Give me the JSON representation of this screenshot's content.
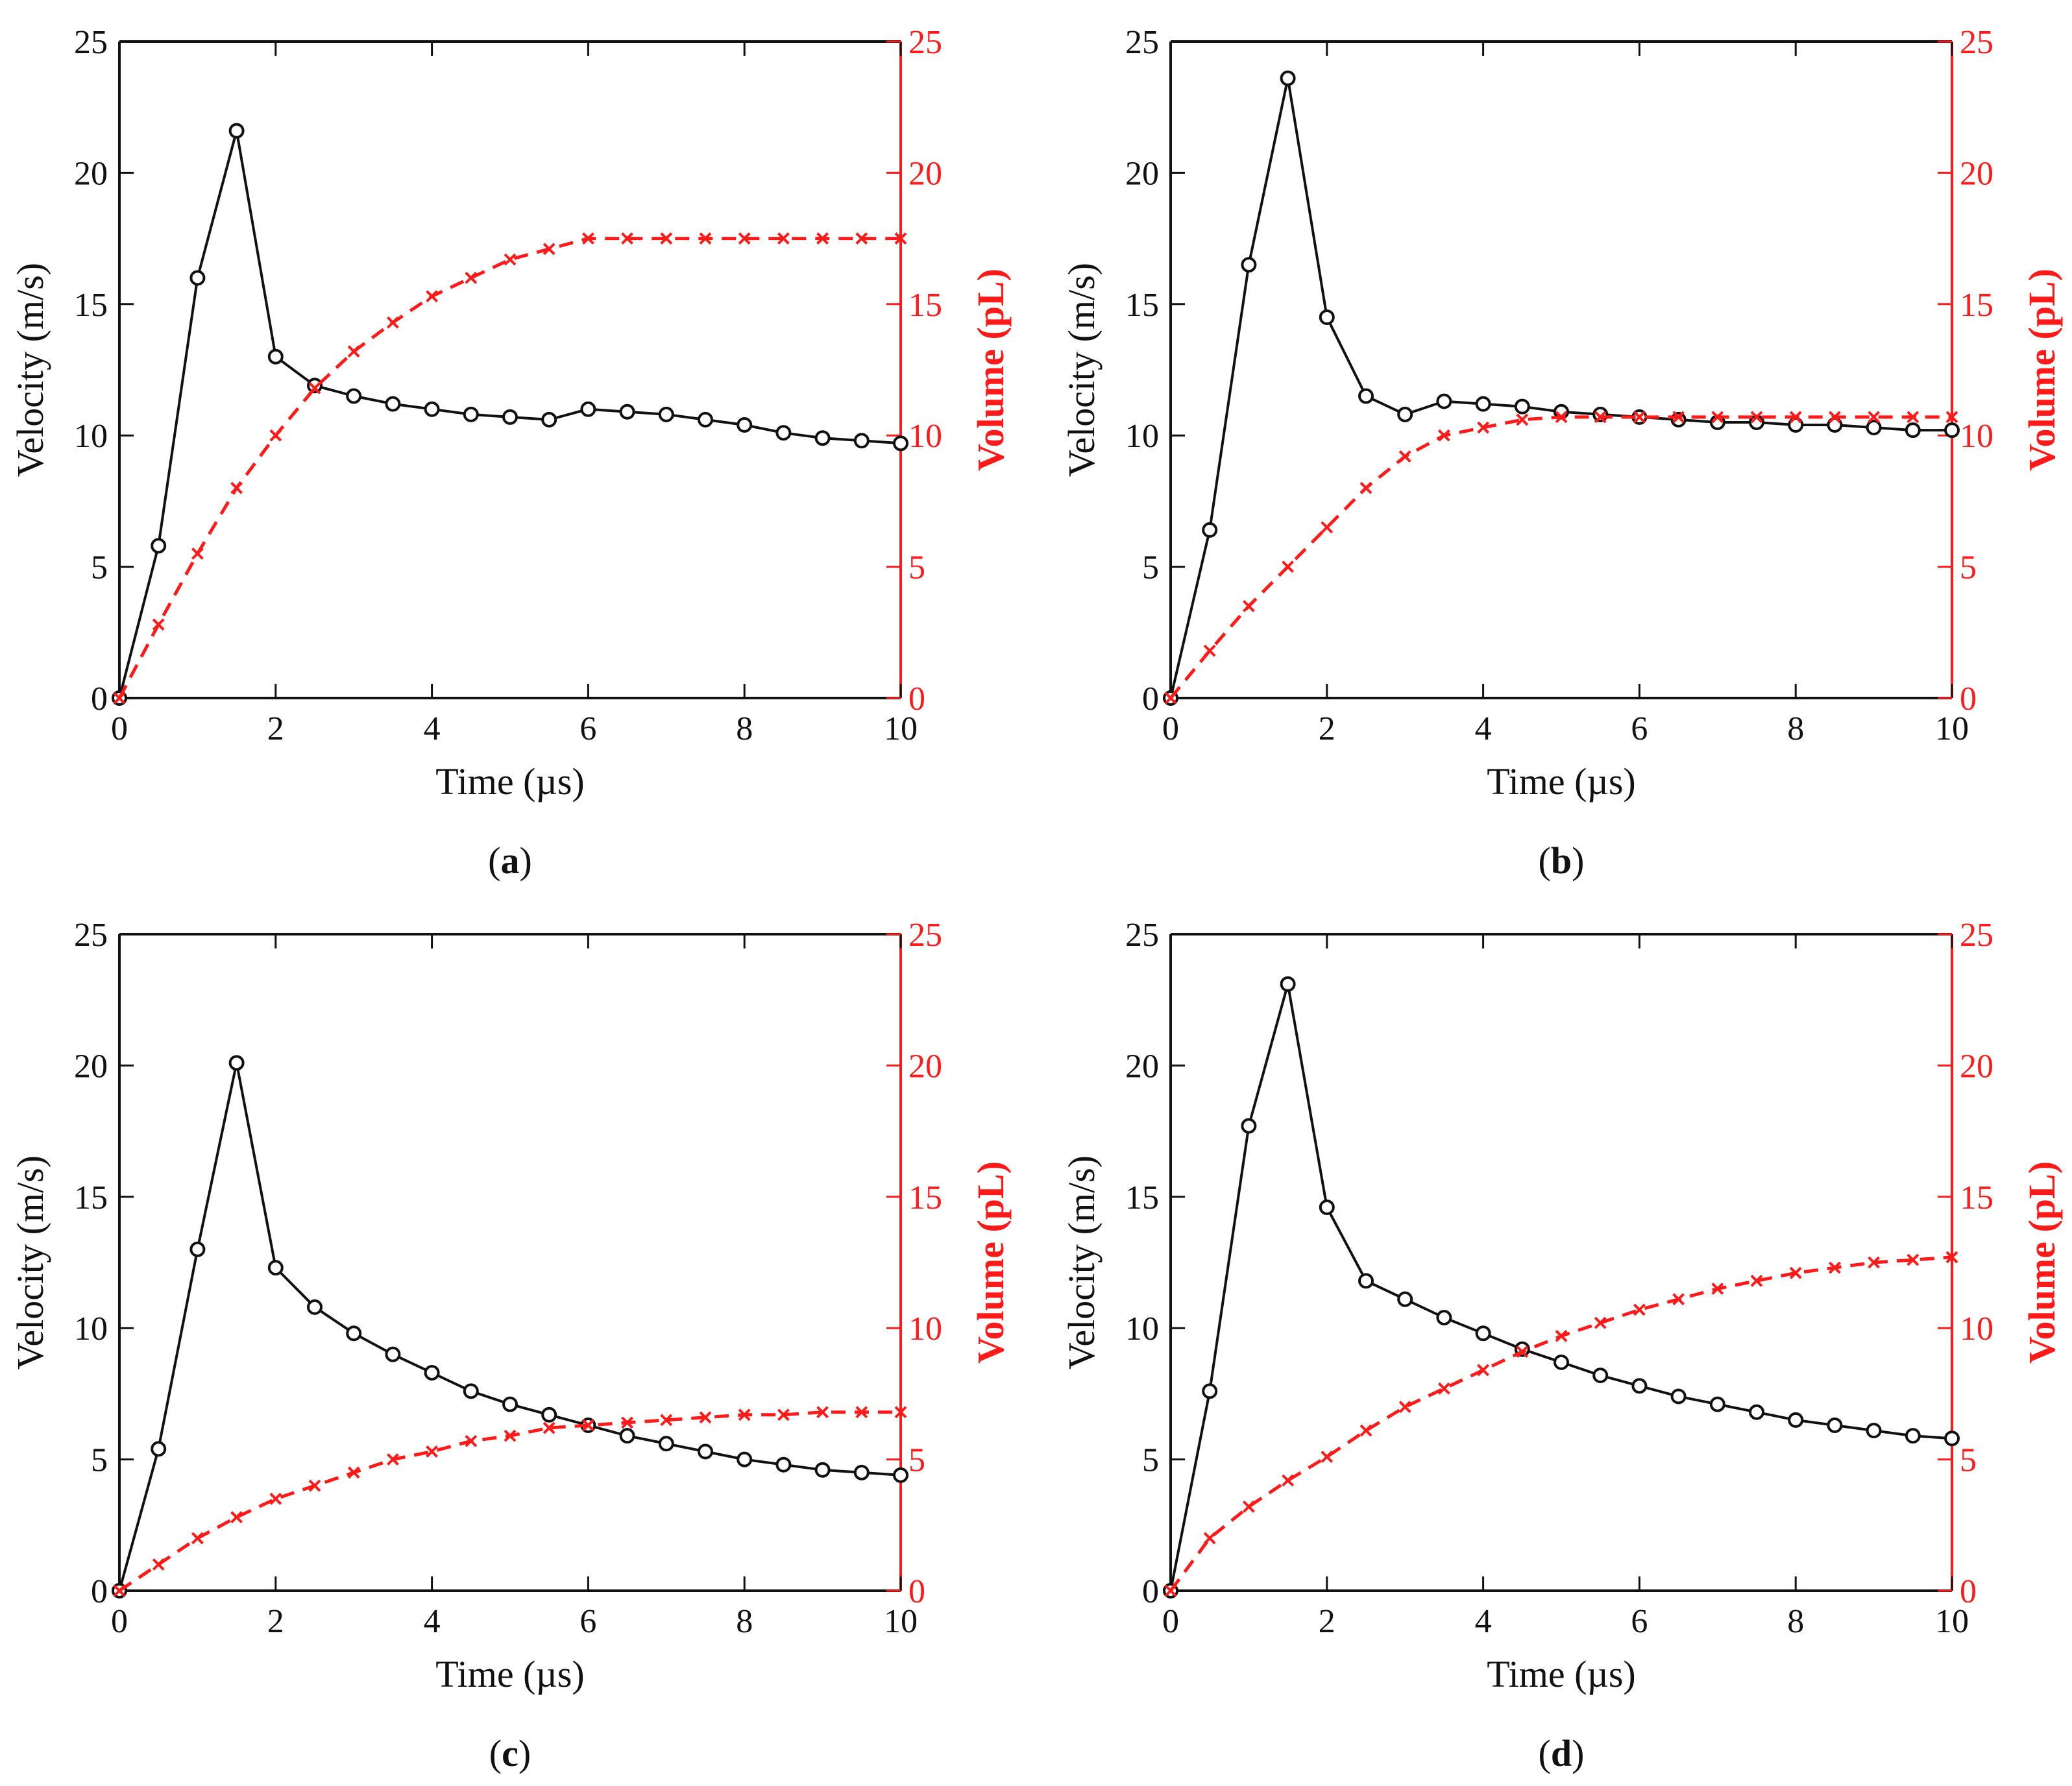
{
  "colors": {
    "velocity": "#111111",
    "volume": "#ff1a1a",
    "axis": "#111111"
  },
  "chart_data": [
    {
      "type": "line",
      "panel_label": "a",
      "xlabel": "Time (µs)",
      "ylabel": "Velocity (m/s)",
      "y2label": "Volume (pL)",
      "xlim": [
        0,
        10
      ],
      "ylim": [
        0,
        25
      ],
      "y2lim": [
        0,
        25
      ],
      "xticks": [
        "0",
        "2",
        "4",
        "6",
        "8",
        "10"
      ],
      "yticks": [
        "0",
        "5",
        "10",
        "15",
        "20",
        "25"
      ],
      "y2ticks": [
        "0",
        "5",
        "10",
        "15",
        "20",
        "25"
      ],
      "x": [
        0,
        0.5,
        1,
        1.5,
        2,
        2.5,
        3,
        3.5,
        4,
        4.5,
        5,
        5.5,
        6,
        6.5,
        7,
        7.5,
        8,
        8.5,
        9,
        9.5,
        10
      ],
      "series": [
        {
          "name": "Velocity",
          "axis": "left",
          "marker": "circle",
          "style": "solid",
          "values": [
            0,
            5.8,
            16.0,
            21.6,
            13.0,
            11.9,
            11.5,
            11.2,
            11.0,
            10.8,
            10.7,
            10.6,
            11.0,
            10.9,
            10.8,
            10.6,
            10.4,
            10.1,
            9.9,
            9.8,
            9.7
          ]
        },
        {
          "name": "Volume",
          "axis": "right",
          "marker": "x",
          "style": "dashed",
          "values": [
            0,
            2.8,
            5.5,
            8.0,
            10.0,
            11.8,
            13.2,
            14.3,
            15.3,
            16.0,
            16.7,
            17.1,
            17.5,
            17.5,
            17.5,
            17.5,
            17.5,
            17.5,
            17.5,
            17.5,
            17.5
          ]
        }
      ]
    },
    {
      "type": "line",
      "panel_label": "b",
      "xlabel": "Time (µs)",
      "ylabel": "Velocity (m/s)",
      "y2label": "Volume (pL)",
      "xlim": [
        0,
        10
      ],
      "ylim": [
        0,
        25
      ],
      "y2lim": [
        0,
        25
      ],
      "xticks": [
        "0",
        "2",
        "4",
        "6",
        "8",
        "10"
      ],
      "yticks": [
        "0",
        "5",
        "10",
        "15",
        "20",
        "25"
      ],
      "y2ticks": [
        "0",
        "5",
        "10",
        "15",
        "20",
        "25"
      ],
      "x": [
        0,
        0.5,
        1,
        1.5,
        2,
        2.5,
        3,
        3.5,
        4,
        4.5,
        5,
        5.5,
        6,
        6.5,
        7,
        7.5,
        8,
        8.5,
        9,
        9.5,
        10
      ],
      "series": [
        {
          "name": "Velocity",
          "axis": "left",
          "marker": "circle",
          "style": "solid",
          "values": [
            0,
            6.4,
            16.5,
            23.6,
            14.5,
            11.5,
            10.8,
            11.3,
            11.2,
            11.1,
            10.9,
            10.8,
            10.7,
            10.6,
            10.5,
            10.5,
            10.4,
            10.4,
            10.3,
            10.2,
            10.2
          ]
        },
        {
          "name": "Volume",
          "axis": "right",
          "marker": "x",
          "style": "dashed",
          "values": [
            0,
            1.8,
            3.5,
            5.0,
            6.5,
            8.0,
            9.2,
            10.0,
            10.3,
            10.6,
            10.7,
            10.7,
            10.7,
            10.7,
            10.7,
            10.7,
            10.7,
            10.7,
            10.7,
            10.7,
            10.7
          ]
        }
      ]
    },
    {
      "type": "line",
      "panel_label": "c",
      "xlabel": "Time (µs)",
      "ylabel": "Velocity (m/s)",
      "y2label": "Volume (pL)",
      "xlim": [
        0,
        10
      ],
      "ylim": [
        0,
        25
      ],
      "y2lim": [
        0,
        25
      ],
      "xticks": [
        "0",
        "2",
        "4",
        "6",
        "8",
        "10"
      ],
      "yticks": [
        "0",
        "5",
        "10",
        "15",
        "20",
        "25"
      ],
      "y2ticks": [
        "0",
        "5",
        "10",
        "15",
        "20",
        "25"
      ],
      "x": [
        0,
        0.5,
        1,
        1.5,
        2,
        2.5,
        3,
        3.5,
        4,
        4.5,
        5,
        5.5,
        6,
        6.5,
        7,
        7.5,
        8,
        8.5,
        9,
        9.5,
        10
      ],
      "series": [
        {
          "name": "Velocity",
          "axis": "left",
          "marker": "circle",
          "style": "solid",
          "values": [
            0,
            5.4,
            13.0,
            20.1,
            12.3,
            10.8,
            9.8,
            9.0,
            8.3,
            7.6,
            7.1,
            6.7,
            6.3,
            5.9,
            5.6,
            5.3,
            5.0,
            4.8,
            4.6,
            4.5,
            4.4
          ]
        },
        {
          "name": "Volume",
          "axis": "right",
          "marker": "x",
          "style": "dashed",
          "values": [
            0,
            1.0,
            2.0,
            2.8,
            3.5,
            4.0,
            4.5,
            5.0,
            5.3,
            5.7,
            5.9,
            6.2,
            6.3,
            6.4,
            6.5,
            6.6,
            6.7,
            6.7,
            6.8,
            6.8,
            6.8
          ]
        }
      ]
    },
    {
      "type": "line",
      "panel_label": "d",
      "xlabel": "Time (µs)",
      "ylabel": "Velocity (m/s)",
      "y2label": "Volume (pL)",
      "xlim": [
        0,
        10
      ],
      "ylim": [
        0,
        25
      ],
      "y2lim": [
        0,
        25
      ],
      "xticks": [
        "0",
        "2",
        "4",
        "6",
        "8",
        "10"
      ],
      "yticks": [
        "0",
        "5",
        "10",
        "15",
        "20",
        "25"
      ],
      "y2ticks": [
        "0",
        "5",
        "10",
        "15",
        "20",
        "25"
      ],
      "x": [
        0,
        0.5,
        1,
        1.5,
        2,
        2.5,
        3,
        3.5,
        4,
        4.5,
        5,
        5.5,
        6,
        6.5,
        7,
        7.5,
        8,
        8.5,
        9,
        9.5,
        10
      ],
      "series": [
        {
          "name": "Velocity",
          "axis": "left",
          "marker": "circle",
          "style": "solid",
          "values": [
            0,
            7.6,
            17.7,
            23.1,
            14.6,
            11.8,
            11.1,
            10.4,
            9.8,
            9.2,
            8.7,
            8.2,
            7.8,
            7.4,
            7.1,
            6.8,
            6.5,
            6.3,
            6.1,
            5.9,
            5.8
          ]
        },
        {
          "name": "Volume",
          "axis": "right",
          "marker": "x",
          "style": "dashed",
          "values": [
            0,
            2.0,
            3.2,
            4.2,
            5.1,
            6.1,
            7.0,
            7.7,
            8.4,
            9.1,
            9.7,
            10.2,
            10.7,
            11.1,
            11.5,
            11.8,
            12.1,
            12.3,
            12.5,
            12.6,
            12.7
          ]
        }
      ]
    }
  ]
}
